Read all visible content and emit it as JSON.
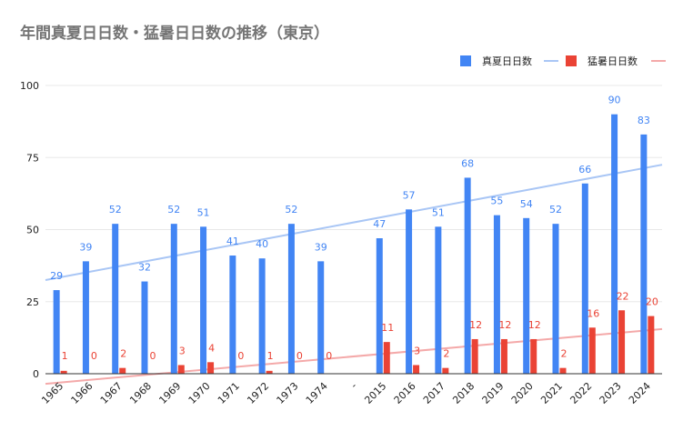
{
  "chart_data": {
    "type": "bar",
    "title": "年間真夏日日数・猛暑日日数の推移（東京）",
    "categories": [
      "1965",
      "1966",
      "1967",
      "1968",
      "1969",
      "1970",
      "1971",
      "1972",
      "1973",
      "1974",
      "-",
      "2015",
      "2016",
      "2017",
      "2018",
      "2019",
      "2020",
      "2021",
      "2022",
      "2023",
      "2024"
    ],
    "series": [
      {
        "name": "真夏日日数",
        "color": "#4285f4",
        "label_color": "#4285f4",
        "values": [
          29,
          39,
          52,
          32,
          52,
          51,
          41,
          40,
          52,
          39,
          null,
          47,
          57,
          51,
          68,
          55,
          54,
          52,
          66,
          90,
          83
        ]
      },
      {
        "name": "猛暑日日数",
        "color": "#ea4335",
        "label_color": "#ea4335",
        "values": [
          1,
          0,
          2,
          0,
          3,
          4,
          0,
          1,
          0,
          0,
          null,
          11,
          3,
          2,
          12,
          12,
          12,
          2,
          16,
          22,
          20
        ]
      }
    ],
    "trendlines": [
      {
        "series": "真夏日日数",
        "color": "#a9c6f5",
        "start": 32.5,
        "end": 72.5
      },
      {
        "series": "猛暑日日数",
        "color": "#f4a9a9",
        "start": -3.5,
        "end": 15.5
      }
    ],
    "yticks": [
      0,
      25,
      50,
      75,
      100
    ],
    "ylim": [
      0,
      100
    ],
    "xlabel": "",
    "ylabel": "",
    "legend_position": "top-right",
    "grid": true
  }
}
